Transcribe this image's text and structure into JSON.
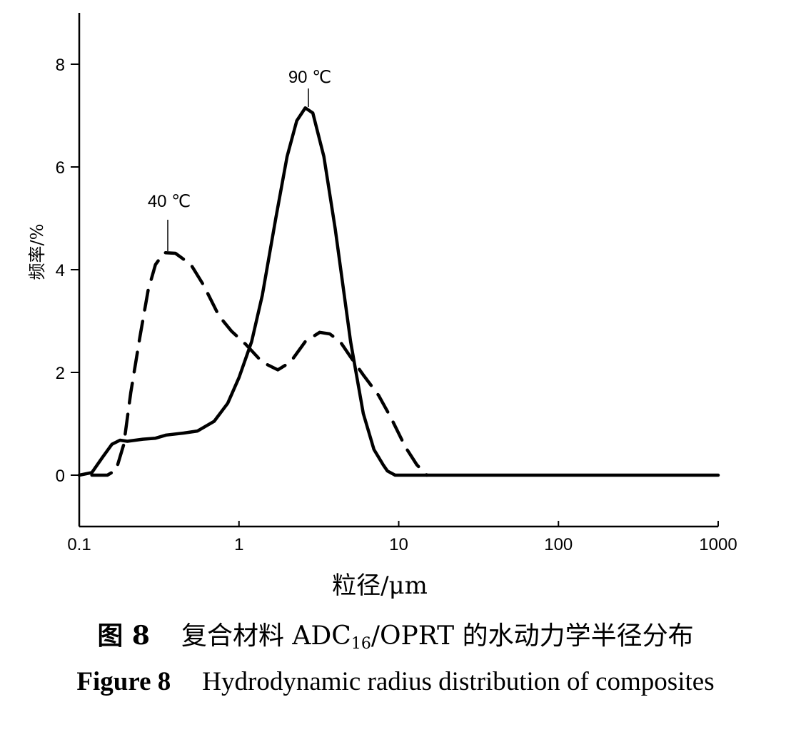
{
  "chart_data": {
    "type": "line",
    "x_scale": "log",
    "xlim": [
      0.1,
      1000
    ],
    "ylim": [
      -1,
      9
    ],
    "x_ticks": [
      0.1,
      1,
      10,
      100,
      1000
    ],
    "x_tick_labels": [
      "0.1",
      "1",
      "10",
      "100",
      "1000"
    ],
    "y_ticks": [
      0,
      2,
      4,
      6,
      8
    ],
    "y_tick_labels": [
      "0",
      "2",
      "4",
      "6",
      "8"
    ],
    "xlabel": "粒径/μm",
    "ylabel": "频率/%",
    "grid": false,
    "series": [
      {
        "name": "90 ℃",
        "line_style": "solid",
        "color": "#000000",
        "x": [
          0.1,
          0.12,
          0.14,
          0.16,
          0.18,
          0.2,
          0.25,
          0.3,
          0.35,
          0.45,
          0.55,
          0.7,
          0.85,
          1.0,
          1.2,
          1.4,
          1.7,
          2.0,
          2.3,
          2.6,
          2.9,
          3.4,
          4.0,
          5.0,
          6.0,
          7.0,
          8.0,
          8.5,
          9.5,
          12,
          20,
          50,
          100,
          300,
          1000
        ],
        "y": [
          0.0,
          0.05,
          0.35,
          0.6,
          0.68,
          0.66,
          0.7,
          0.72,
          0.78,
          0.82,
          0.86,
          1.05,
          1.4,
          1.9,
          2.6,
          3.5,
          5.0,
          6.2,
          6.9,
          7.15,
          7.05,
          6.2,
          4.8,
          2.6,
          1.2,
          0.5,
          0.2,
          0.08,
          0.0,
          0.0,
          0.0,
          0.0,
          0.0,
          0.0,
          0.0
        ],
        "annotation": "90 ℃"
      },
      {
        "name": "40 ℃",
        "line_style": "dashed",
        "color": "#000000",
        "x": [
          0.12,
          0.15,
          0.17,
          0.19,
          0.21,
          0.24,
          0.27,
          0.3,
          0.34,
          0.4,
          0.5,
          0.6,
          0.75,
          0.9,
          1.1,
          1.4,
          1.75,
          2.1,
          2.6,
          3.2,
          3.7,
          4.3,
          5.0,
          6.0,
          7.5,
          9.0,
          11.0,
          13.0,
          15.0
        ],
        "y": [
          0.0,
          0.0,
          0.1,
          0.6,
          1.6,
          2.7,
          3.6,
          4.1,
          4.33,
          4.32,
          4.1,
          3.7,
          3.1,
          2.8,
          2.55,
          2.2,
          2.05,
          2.2,
          2.6,
          2.78,
          2.75,
          2.6,
          2.3,
          1.95,
          1.55,
          1.1,
          0.55,
          0.2,
          0.0
        ],
        "annotation": "40 ℃"
      }
    ]
  },
  "annotations": {
    "label_90": "90 ℃",
    "label_40": "40 ℃"
  },
  "caption": {
    "cn_label": "图 8",
    "cn_text_before": "复合材料 ADC",
    "cn_sub": "16",
    "cn_text_after": "/OPRT 的水动力学半径分布",
    "en_label": "Figure 8",
    "en_text": "Hydrodynamic radius distribution of composites"
  }
}
